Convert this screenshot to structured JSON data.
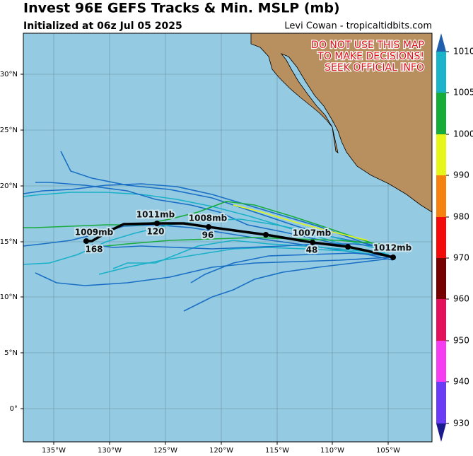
{
  "header": {
    "title": "Invest 96E GEFS Tracks & Min. MSLP (mb)",
    "subtitle": "Initialized at 06z Jul 05 2025",
    "credit": "Levi Cowan - tropicaltidbits.com"
  },
  "warning": [
    "DO NOT USE THIS MAP",
    "TO MAKE DECISIONS!",
    "SEEK OFFICIAL INFO"
  ],
  "lon_labels": [
    "135°W",
    "130°W",
    "125°W",
    "120°W",
    "115°W",
    "110°W",
    "105°W"
  ],
  "lat_labels": [
    "30°N",
    "25°N",
    "20°N",
    "15°N",
    "10°N",
    "5°N",
    "0°"
  ],
  "colorbar_labels": [
    "1010",
    "1005",
    "1000",
    "990",
    "980",
    "970",
    "960",
    "950",
    "940",
    "930"
  ],
  "track_labels": [
    "1012mb",
    "1007mb",
    "48",
    "1008mb",
    "96",
    "1011mb",
    "120",
    "1009mb",
    "168"
  ]
}
